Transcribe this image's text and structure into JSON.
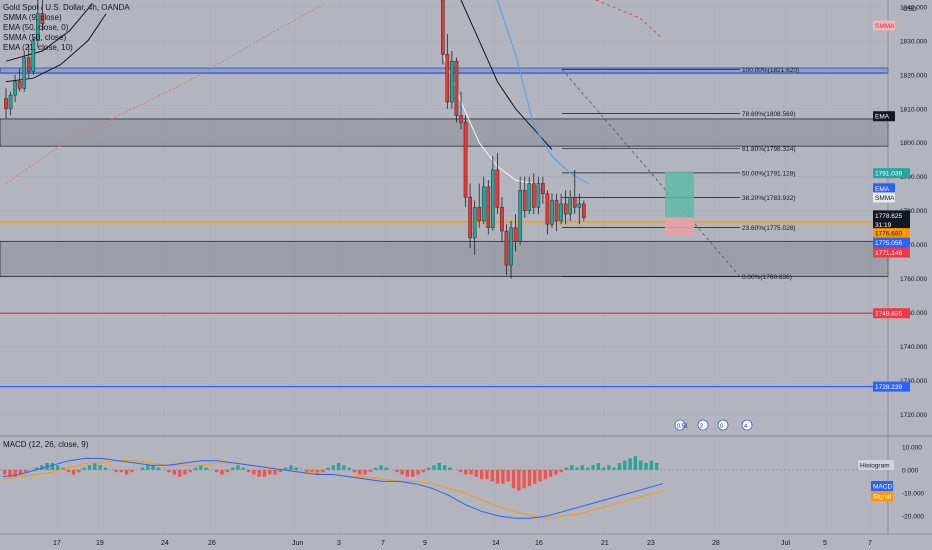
{
  "header": {
    "symbol": "Gold Spot / U.S. Dollar, 4h, OANDA",
    "currency": "USD",
    "indicators": [
      "SMMA (9, close)",
      "EMA (50, close, 0)",
      "SMMA (50, close)",
      "EMA (21, close, 10)"
    ]
  },
  "colors": {
    "background": "#b2b5be",
    "up": "#26a69a",
    "down": "#e53935",
    "candle_wick": "#1e222d",
    "grid": "#a9acb5",
    "red_line": "#f23645",
    "blue_line": "#2962ff",
    "orange_line": "#ff9800",
    "zone": "#8e919a",
    "target_box": "#5fb8a8",
    "stop_box": "#e6a0a8"
  },
  "chart_data": {
    "type": "candlestick",
    "title": "Gold Spot / U.S. Dollar, 4h, OANDA",
    "ylim": [
      1714,
      1842
    ],
    "y_ticks": [
      1720,
      1730,
      1740,
      1750,
      1760,
      1770,
      1780,
      1790,
      1800,
      1810,
      1820,
      1830,
      1840
    ],
    "x_ticks": [
      "17",
      "19",
      "24",
      "26",
      "Jun",
      "3",
      "7",
      "9",
      "14",
      "16",
      "21",
      "23",
      "28",
      "Jul",
      "5",
      "7"
    ],
    "series": [
      {
        "name": "EMA",
        "type": "line",
        "points": [
          [
            0,
            1824
          ],
          [
            8,
            1827
          ],
          [
            14,
            1833
          ],
          [
            19,
            1841
          ]
        ]
      },
      {
        "name": "SMMA",
        "type": "line",
        "points": [
          [
            0,
            1818
          ],
          [
            6,
            1819
          ],
          [
            12,
            1823
          ],
          [
            18,
            1830
          ],
          [
            22,
            1838
          ]
        ]
      },
      {
        "name": "EMA (50)",
        "type": "line",
        "points": [
          [
            0,
            1788
          ],
          [
            14,
            1801
          ],
          [
            40,
            1818
          ],
          [
            58,
            1832
          ],
          [
            70,
            1841
          ]
        ]
      },
      {
        "name": "SMMA (9)",
        "type": "line",
        "points": [
          [
            96,
            1826
          ],
          [
            100,
            1812
          ],
          [
            104,
            1800
          ],
          [
            108,
            1793
          ],
          [
            112,
            1789
          ],
          [
            116,
            1788
          ],
          [
            118,
            1787
          ]
        ]
      },
      {
        "name": "SMMA (50)",
        "type": "line",
        "points": [
          [
            100,
            1842
          ],
          [
            104,
            1830
          ],
          [
            108,
            1818
          ],
          [
            112,
            1810
          ],
          [
            116,
            1804
          ],
          [
            120,
            1798
          ]
        ]
      },
      {
        "name": "EMA (21)",
        "type": "line",
        "points": [
          [
            108,
            1842
          ],
          [
            112,
            1826
          ],
          [
            116,
            1805
          ],
          [
            120,
            1796
          ],
          [
            124,
            1791
          ],
          [
            128,
            1788
          ]
        ]
      }
    ],
    "candles": [
      {
        "x": 0,
        "o": 1813,
        "h": 1816,
        "l": 1807,
        "c": 1810
      },
      {
        "x": 1,
        "o": 1810,
        "h": 1815,
        "l": 1808,
        "c": 1814
      },
      {
        "x": 2,
        "o": 1814,
        "h": 1820,
        "l": 1812,
        "c": 1818
      },
      {
        "x": 3,
        "o": 1818,
        "h": 1822,
        "l": 1815,
        "c": 1816
      },
      {
        "x": 4,
        "o": 1816,
        "h": 1827,
        "l": 1815,
        "c": 1825
      },
      {
        "x": 5,
        "o": 1825,
        "h": 1829,
        "l": 1819,
        "c": 1821
      },
      {
        "x": 6,
        "o": 1821,
        "h": 1831,
        "l": 1820,
        "c": 1830
      },
      {
        "x": 7,
        "o": 1830,
        "h": 1842,
        "l": 1828,
        "c": 1838
      },
      {
        "x": 8,
        "o": 1838,
        "h": 1842,
        "l": 1833,
        "c": 1835
      },
      {
        "x": 96,
        "o": 1842,
        "h": 1842,
        "l": 1823,
        "c": 1826
      },
      {
        "x": 97,
        "o": 1826,
        "h": 1832,
        "l": 1810,
        "c": 1812
      },
      {
        "x": 98,
        "o": 1812,
        "h": 1827,
        "l": 1810,
        "c": 1824
      },
      {
        "x": 99,
        "o": 1824,
        "h": 1825,
        "l": 1806,
        "c": 1808
      },
      {
        "x": 100,
        "o": 1808,
        "h": 1815,
        "l": 1804,
        "c": 1806
      },
      {
        "x": 101,
        "o": 1806,
        "h": 1808,
        "l": 1781,
        "c": 1784
      },
      {
        "x": 102,
        "o": 1784,
        "h": 1788,
        "l": 1769,
        "c": 1772
      },
      {
        "x": 103,
        "o": 1772,
        "h": 1783,
        "l": 1767,
        "c": 1781
      },
      {
        "x": 104,
        "o": 1781,
        "h": 1788,
        "l": 1775,
        "c": 1777
      },
      {
        "x": 105,
        "o": 1777,
        "h": 1790,
        "l": 1776,
        "c": 1787
      },
      {
        "x": 106,
        "o": 1787,
        "h": 1789,
        "l": 1773,
        "c": 1775
      },
      {
        "x": 107,
        "o": 1775,
        "h": 1796,
        "l": 1774,
        "c": 1792
      },
      {
        "x": 108,
        "o": 1792,
        "h": 1797,
        "l": 1779,
        "c": 1781
      },
      {
        "x": 109,
        "o": 1781,
        "h": 1784,
        "l": 1771,
        "c": 1774
      },
      {
        "x": 110,
        "o": 1774,
        "h": 1776,
        "l": 1761,
        "c": 1764
      },
      {
        "x": 111,
        "o": 1764,
        "h": 1777,
        "l": 1760,
        "c": 1775
      },
      {
        "x": 112,
        "o": 1775,
        "h": 1779,
        "l": 1768,
        "c": 1771
      },
      {
        "x": 113,
        "o": 1771,
        "h": 1790,
        "l": 1770,
        "c": 1786
      },
      {
        "x": 114,
        "o": 1786,
        "h": 1790,
        "l": 1778,
        "c": 1780
      },
      {
        "x": 115,
        "o": 1780,
        "h": 1790,
        "l": 1779,
        "c": 1788
      },
      {
        "x": 116,
        "o": 1788,
        "h": 1791,
        "l": 1779,
        "c": 1781
      },
      {
        "x": 117,
        "o": 1781,
        "h": 1790,
        "l": 1779,
        "c": 1788
      },
      {
        "x": 118,
        "o": 1788,
        "h": 1790,
        "l": 1782,
        "c": 1785
      },
      {
        "x": 119,
        "o": 1785,
        "h": 1786,
        "l": 1773,
        "c": 1776
      },
      {
        "x": 120,
        "o": 1776,
        "h": 1785,
        "l": 1775,
        "c": 1783
      },
      {
        "x": 121,
        "o": 1783,
        "h": 1785,
        "l": 1774,
        "c": 1777
      },
      {
        "x": 122,
        "o": 1777,
        "h": 1785,
        "l": 1776,
        "c": 1782
      },
      {
        "x": 123,
        "o": 1782,
        "h": 1786,
        "l": 1776,
        "c": 1779
      },
      {
        "x": 124,
        "o": 1779,
        "h": 1786,
        "l": 1777,
        "c": 1784
      },
      {
        "x": 125,
        "o": 1784,
        "h": 1792,
        "l": 1779,
        "c": 1781
      },
      {
        "x": 126,
        "o": 1781,
        "h": 1785,
        "l": 1776,
        "c": 1782
      },
      {
        "x": 127,
        "o": 1782,
        "h": 1783,
        "l": 1777,
        "c": 1778
      }
    ],
    "fibonacci": [
      {
        "label": "100.00%(1821.620)",
        "price": 1821.62
      },
      {
        "label": "78.60%(1808.569)",
        "price": 1808.569
      },
      {
        "label": "61.80%(1798.324)",
        "price": 1798.324
      },
      {
        "label": "50.00%(1791.128)",
        "price": 1791.128
      },
      {
        "label": "38.20%(1783.932)",
        "price": 1783.932
      },
      {
        "label": "23.60%(1775.028)",
        "price": 1775.028
      },
      {
        "label": "0.00%(1760.636)",
        "price": 1760.636
      }
    ],
    "horizontal_lines": [
      {
        "price": 1749.835,
        "color": "red"
      },
      {
        "price": 1728.239,
        "color": "blue"
      },
      {
        "price": 1776.68,
        "color": "orange"
      }
    ],
    "zones": [
      [
        1807,
        1799
      ],
      [
        1771,
        1760.6
      ],
      [
        1822,
        1820.5
      ]
    ],
    "price_tags": [
      {
        "label": "SMMA",
        "price": 1834.5,
        "bg": "#f3b5ba",
        "fg": "#d32f2f"
      },
      {
        "label": "EMA",
        "price": 1807.8,
        "bg": "#131722",
        "fg": "#ffffff"
      },
      {
        "label": "1791.039",
        "price": 1791.039,
        "bg": "#26a69a",
        "fg": "#ffffff"
      },
      {
        "label": "EMA",
        "price": 1786.6,
        "bg": "#2962ff",
        "fg": "#ffffff"
      },
      {
        "label": "SMMA",
        "price": 1783.9,
        "bg": "#e8eaed",
        "fg": "#131722"
      },
      {
        "label": "1778.625",
        "price": 1778.625,
        "bg": "#131722",
        "fg": "#ffffff"
      },
      {
        "label": "31:19",
        "price": 1775.9,
        "bg": "#131722",
        "fg": "#ffffff"
      },
      {
        "label": "1776.680",
        "price": 1773.4,
        "bg": "#ff9800",
        "fg": "#131722"
      },
      {
        "label": "1775.056",
        "price": 1770.6,
        "bg": "#2962ff",
        "fg": "#ffffff"
      },
      {
        "label": "1771.146",
        "price": 1767.7,
        "bg": "#f23645",
        "fg": "#ffffff"
      },
      {
        "label": "1749.835",
        "price": 1749.835,
        "bg": "#f23645",
        "fg": "#ffffff"
      },
      {
        "label": "1728.239",
        "price": 1728.239,
        "bg": "#2962ff",
        "fg": "#ffffff"
      }
    ],
    "events": [
      "0.51",
      "2",
      "0",
      "4"
    ],
    "macd": {
      "title": "MACD (12, 26, close, 9)",
      "ylim": [
        -27,
        13
      ],
      "y_ticks": [
        "10.000",
        "0.000",
        "-10.000",
        "-20.000"
      ],
      "tags": [
        "Histogram",
        "MACD",
        "Signal"
      ],
      "histogram": [
        -2,
        -3,
        -3,
        -2,
        -1,
        0,
        1,
        2,
        3,
        3,
        2,
        1,
        -1,
        -2,
        -1,
        1,
        2,
        3,
        2,
        1,
        0,
        -1,
        -1,
        -2,
        -1,
        0,
        1,
        2,
        2,
        1,
        0,
        -1,
        -2,
        -3,
        -2,
        -1,
        1,
        2,
        1,
        0,
        -1,
        -2,
        -1,
        1,
        2,
        1,
        -1,
        -2,
        -3,
        -3,
        -2,
        -2,
        -1,
        1,
        2,
        1,
        0,
        -1,
        -1,
        -2,
        -1,
        1,
        2,
        3,
        2,
        1,
        -1,
        -2,
        -2,
        -1,
        1,
        2,
        1,
        0,
        -1,
        -2,
        -3,
        -3,
        -2,
        -1,
        1,
        2,
        3,
        2,
        1,
        0,
        -1,
        -2,
        -2,
        -3,
        -4,
        -4,
        -5,
        -6,
        -6,
        -5,
        -8,
        -9,
        -8,
        -7,
        -6,
        -5,
        -4,
        -3,
        -2,
        -1,
        1,
        2,
        1,
        2,
        1,
        2,
        3,
        1,
        2,
        1,
        3,
        4,
        5,
        6,
        4,
        3,
        4,
        3
      ],
      "macd_line": [
        -3,
        -2,
        0,
        2,
        4,
        5,
        5,
        4,
        3,
        2,
        2,
        3,
        4,
        4,
        3,
        2,
        1,
        0,
        -1,
        -2,
        -2,
        -3,
        -4,
        -5,
        -5,
        -6,
        -8,
        -11,
        -15,
        -18,
        -20,
        -21,
        -21,
        -20,
        -18,
        -16,
        -14,
        -12,
        -10,
        -8,
        -6
      ],
      "signal_line": [
        -4,
        -3,
        -2,
        -1,
        1,
        3,
        3,
        4,
        4,
        3,
        2,
        2,
        2,
        3,
        3,
        2,
        1,
        0,
        -1,
        -1,
        -2,
        -3,
        -3,
        -4,
        -5,
        -5,
        -6,
        -8,
        -10,
        -13,
        -16,
        -18,
        -20,
        -21,
        -20,
        -19,
        -17,
        -15,
        -13,
        -11,
        -9
      ]
    }
  }
}
